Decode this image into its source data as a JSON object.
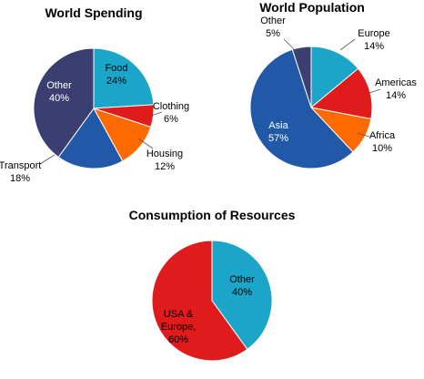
{
  "chart_data": [
    {
      "type": "pie",
      "title": "World Spending",
      "slices": [
        {
          "label": "Food",
          "value": 24,
          "display": "24%",
          "color": "#1aa5c9",
          "text_color": "#000000"
        },
        {
          "label": "Clothing",
          "value": 6,
          "display": "6%",
          "color": "#e01b1b",
          "text_color": "#000000"
        },
        {
          "label": "Housing",
          "value": 12,
          "display": "12%",
          "color": "#ff6a00",
          "text_color": "#000000"
        },
        {
          "label": "Transport",
          "value": 18,
          "display": "18%",
          "color": "#2159a8",
          "text_color": "#000000"
        },
        {
          "label": "Other",
          "value": 40,
          "display": "40%",
          "color": "#3b3e70",
          "text_color": "#ffffff"
        }
      ]
    },
    {
      "type": "pie",
      "title": "World Population",
      "slices": [
        {
          "label": "Europe",
          "value": 14,
          "display": "14%",
          "color": "#1aa5c9",
          "text_color": "#000000"
        },
        {
          "label": "Americas",
          "value": 14,
          "display": "14%",
          "color": "#e01b1b",
          "text_color": "#000000"
        },
        {
          "label": "Africa",
          "value": 10,
          "display": "10%",
          "color": "#ff6a00",
          "text_color": "#000000"
        },
        {
          "label": "Asia",
          "value": 57,
          "display": "57%",
          "color": "#2159a8",
          "text_color": "#ffffff"
        },
        {
          "label": "Other",
          "value": 5,
          "display": "5%",
          "color": "#3b3e70",
          "text_color": "#000000"
        }
      ]
    },
    {
      "type": "pie",
      "title": "Consumption of Resources",
      "slices": [
        {
          "label": "Other",
          "value": 40,
          "display": "40%",
          "color": "#1aa5c9",
          "text_color": "#000000"
        },
        {
          "label": "USA & Europe",
          "label_lines": [
            "USA &",
            "Europe,"
          ],
          "value": 60,
          "display": "60%",
          "color": "#e01b1b",
          "text_color": "#000000"
        }
      ]
    }
  ]
}
